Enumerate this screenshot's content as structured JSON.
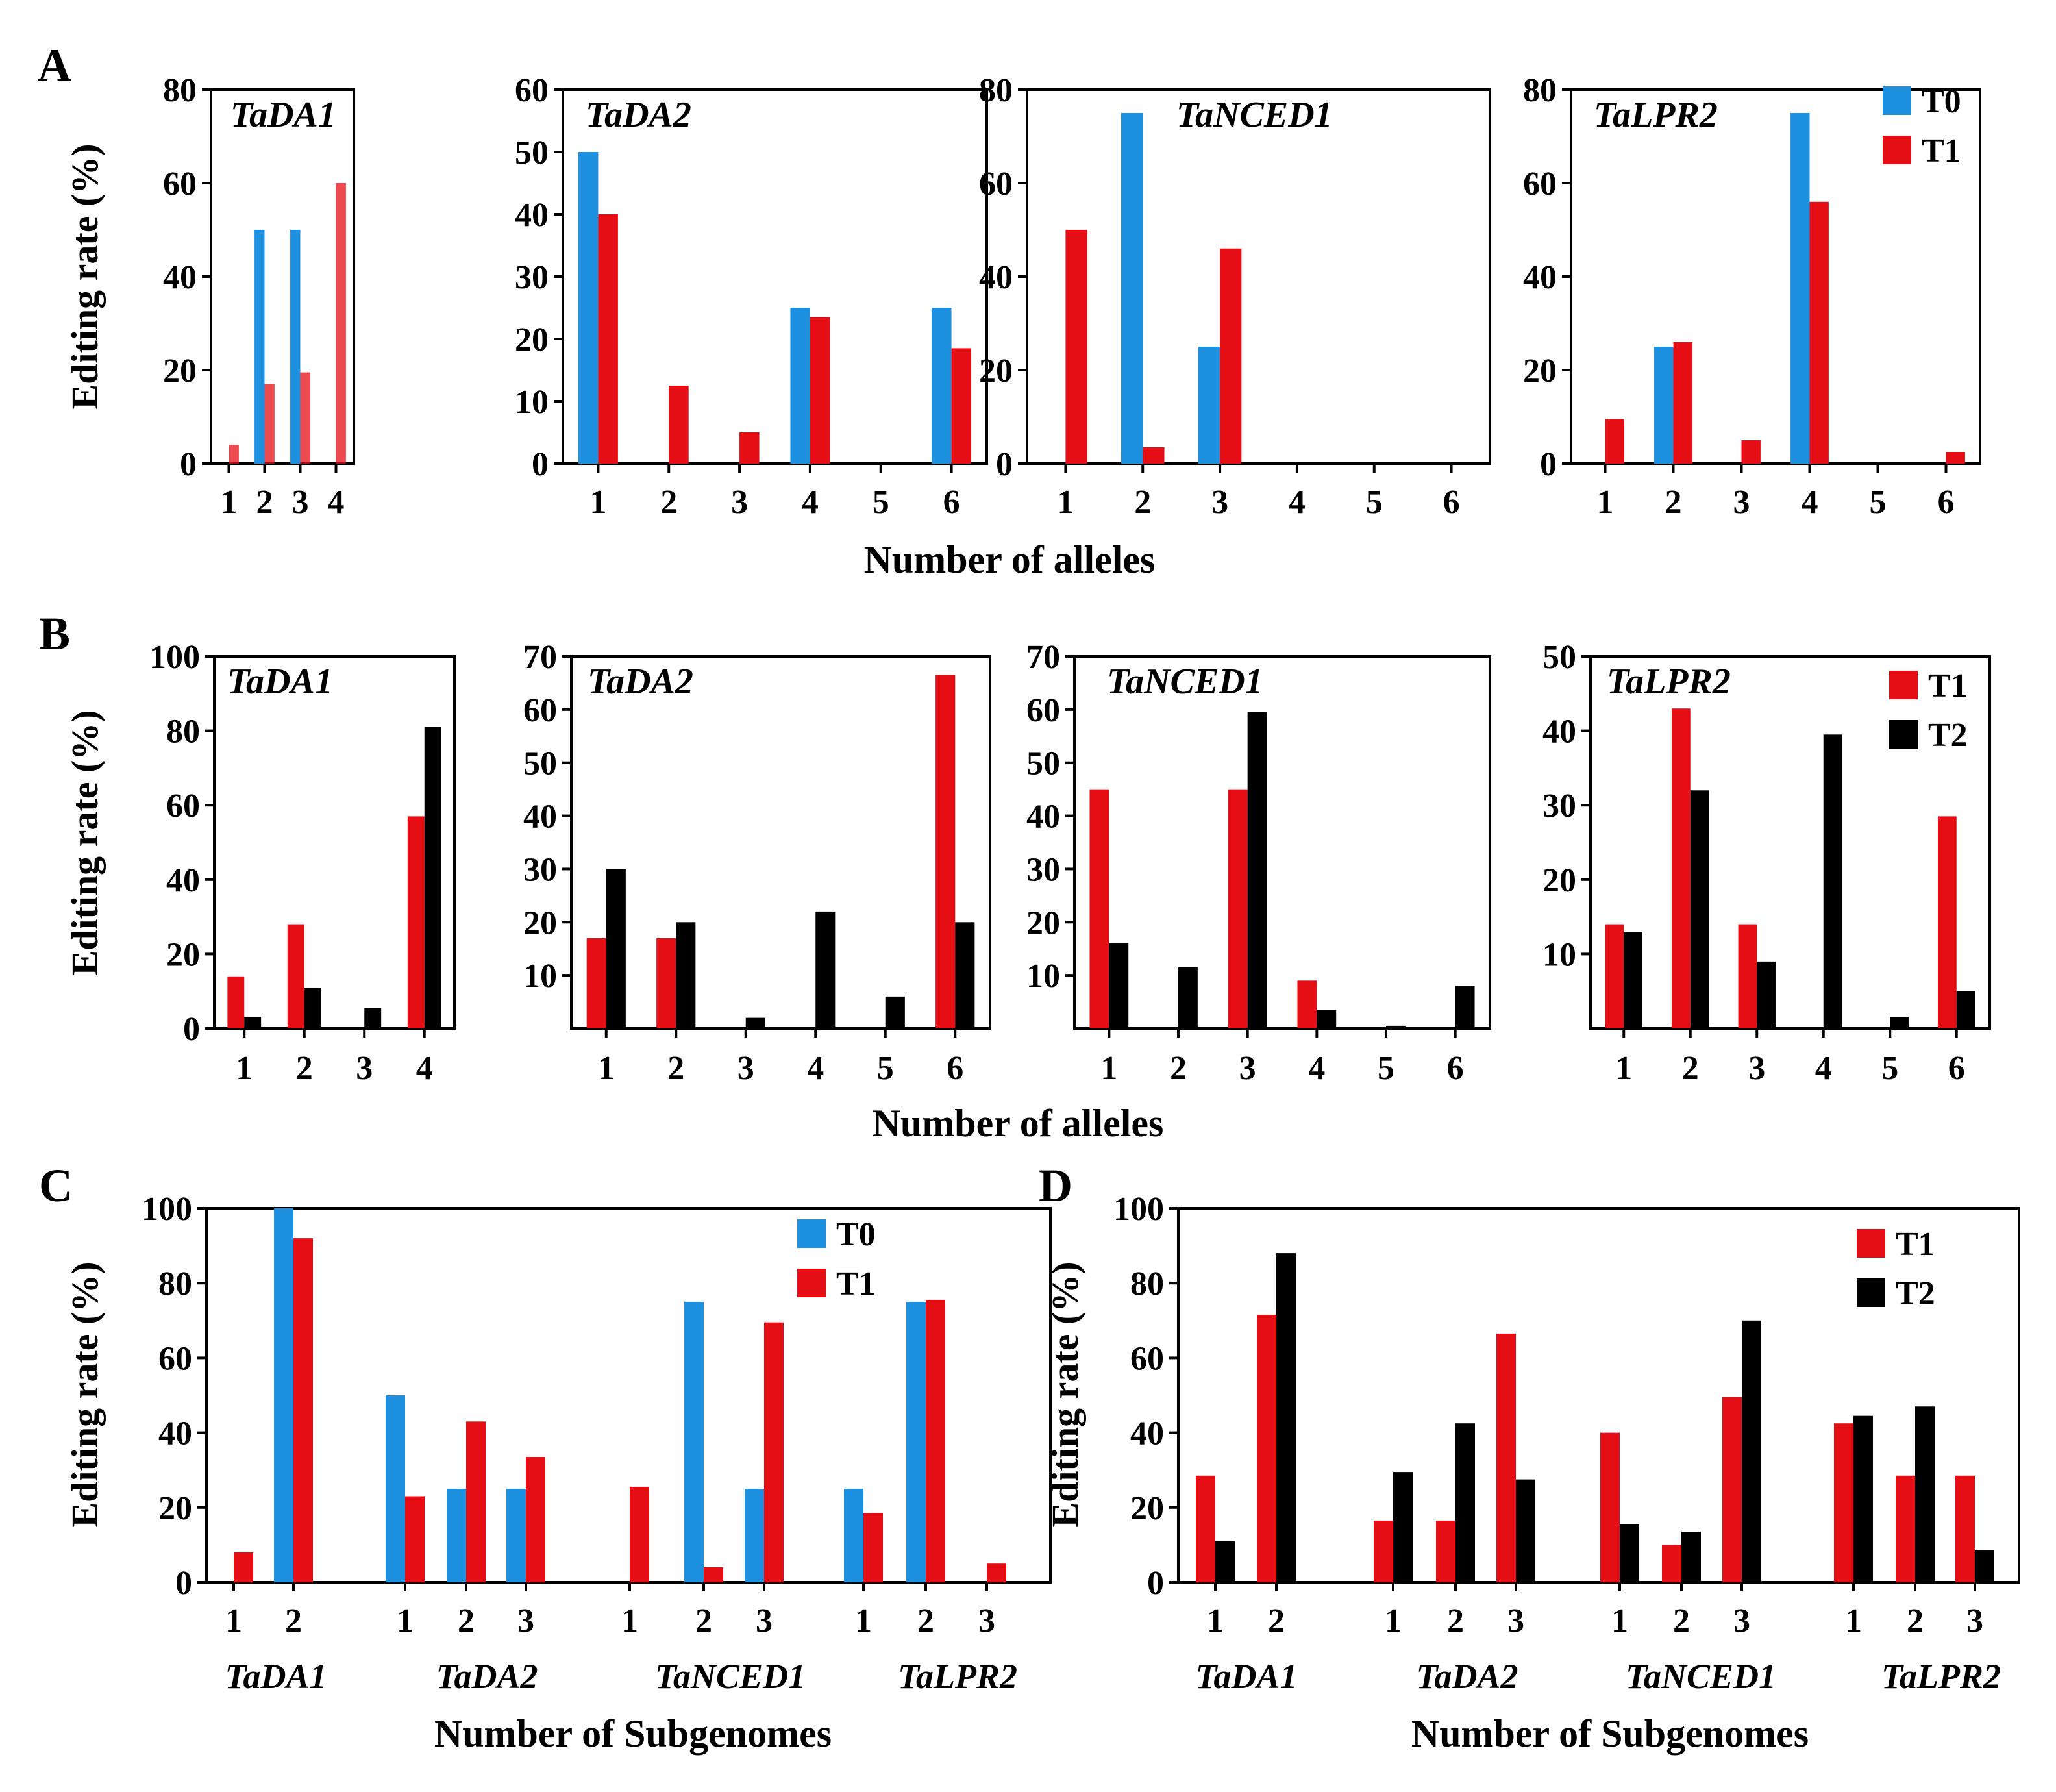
{
  "colors": {
    "T0": "#1e90e0",
    "T1": "#e50e14",
    "T2": "#000000"
  },
  "charts": [
    {
      "id": "A",
      "label": "A",
      "axis": {
        "ylabel": "Editing rate (%)",
        "xlabel": "Number of alleles"
      },
      "legend": [
        {
          "name": "T0",
          "color": "#1e90e0"
        },
        {
          "name": "T1",
          "color": "#e50e14"
        }
      ],
      "panels": [
        {
          "gene": "TaDA1",
          "ylim": [
            0,
            80
          ],
          "yticks": [
            "0",
            "20",
            "40",
            "60",
            "80"
          ],
          "categories": [
            "1",
            "2",
            "3",
            "4"
          ],
          "series": [
            {
              "name": "T0",
              "values": [
                0,
                50,
                50,
                0
              ]
            },
            {
              "name": "T1",
              "values": [
                4,
                17,
                19.5,
                60
              ]
            }
          ]
        },
        {
          "gene": "TaDA2",
          "ylim": [
            0,
            60
          ],
          "yticks": [
            "0",
            "10",
            "20",
            "30",
            "40",
            "50",
            "60"
          ],
          "categories": [
            "1",
            "2",
            "3",
            "4",
            "5",
            "6"
          ],
          "series": [
            {
              "name": "T0",
              "values": [
                50,
                0,
                0,
                25,
                0,
                25
              ]
            },
            {
              "name": "T1",
              "values": [
                40,
                12.5,
                5,
                23.5,
                0,
                18.5
              ]
            }
          ]
        },
        {
          "gene": "TaNCED1",
          "ylim": [
            0,
            80
          ],
          "yticks": [
            "0",
            "20",
            "40",
            "60",
            "80"
          ],
          "categories": [
            "1",
            "2",
            "3",
            "4",
            "5",
            "6"
          ],
          "series": [
            {
              "name": "T0",
              "values": [
                0,
                75,
                25,
                0,
                0,
                0
              ]
            },
            {
              "name": "T1",
              "values": [
                50,
                3.5,
                46,
                0,
                0,
                0
              ]
            }
          ]
        },
        {
          "gene": "TaLPR2",
          "ylim": [
            0,
            80
          ],
          "yticks": [
            "0",
            "20",
            "40",
            "60",
            "80"
          ],
          "categories": [
            "1",
            "2",
            "3",
            "4",
            "5",
            "6"
          ],
          "series": [
            {
              "name": "T0",
              "values": [
                0,
                25,
                0,
                75,
                0,
                0
              ]
            },
            {
              "name": "T1",
              "values": [
                9.5,
                26,
                5,
                56,
                0,
                2.5
              ]
            }
          ]
        }
      ]
    },
    {
      "id": "B",
      "label": "B",
      "axis": {
        "ylabel": "Editing rate (%)",
        "xlabel": "Number of alleles"
      },
      "legend": [
        {
          "name": "T1",
          "color": "#e50e14"
        },
        {
          "name": "T2",
          "color": "#000000"
        }
      ],
      "panels": [
        {
          "gene": "TaDA1",
          "ylim": [
            0,
            100
          ],
          "yticks": [
            "0",
            "20",
            "40",
            "60",
            "80",
            "100"
          ],
          "categories": [
            "1",
            "2",
            "3",
            "4"
          ],
          "series": [
            {
              "name": "T1",
              "values": [
                14,
                28,
                0,
                57
              ]
            },
            {
              "name": "T2",
              "values": [
                3,
                11,
                5.5,
                81
              ]
            }
          ]
        },
        {
          "gene": "TaDA2",
          "ylim": [
            0,
            70
          ],
          "yticks": [
            "10",
            "20",
            "30",
            "40",
            "50",
            "60",
            "70"
          ],
          "categories": [
            "1",
            "2",
            "3",
            "4",
            "5",
            "6"
          ],
          "series": [
            {
              "name": "T1",
              "values": [
                17,
                17,
                0,
                0,
                0,
                66.5
              ]
            },
            {
              "name": "T2",
              "values": [
                30,
                20,
                2,
                22,
                6,
                20
              ]
            }
          ]
        },
        {
          "gene": "TaNCED1",
          "ylim": [
            0,
            70
          ],
          "yticks": [
            "10",
            "20",
            "30",
            "40",
            "50",
            "60",
            "70"
          ],
          "categories": [
            "1",
            "2",
            "3",
            "4",
            "5",
            "6"
          ],
          "series": [
            {
              "name": "T1",
              "values": [
                45,
                0,
                45,
                9,
                0,
                0
              ]
            },
            {
              "name": "T2",
              "values": [
                16,
                11.5,
                59.5,
                3.5,
                0.5,
                8
              ]
            }
          ]
        },
        {
          "gene": "TaLPR2",
          "ylim": [
            0,
            50
          ],
          "yticks": [
            "10",
            "20",
            "30",
            "40",
            "50"
          ],
          "categories": [
            "1",
            "2",
            "3",
            "4",
            "5",
            "6"
          ],
          "series": [
            {
              "name": "T1",
              "values": [
                14,
                43,
                14,
                0,
                0,
                28.5
              ]
            },
            {
              "name": "T2",
              "values": [
                13,
                32,
                9,
                39.5,
                1.5,
                5
              ]
            }
          ]
        }
      ]
    },
    {
      "id": "C",
      "label": "C",
      "axis": {
        "ylabel": "Editing rate (%)",
        "xlabel": "Number of Subgenomes"
      },
      "ylim": [
        0,
        100
      ],
      "yticks": [
        "0",
        "20",
        "40",
        "60",
        "80",
        "100"
      ],
      "legend": [
        {
          "name": "T0",
          "color": "#1e90e0"
        },
        {
          "name": "T1",
          "color": "#e50e14"
        }
      ],
      "groups": [
        {
          "gene": "TaDA1",
          "categories": [
            "1",
            "2"
          ],
          "series": [
            {
              "name": "T0",
              "values": [
                0,
                100
              ]
            },
            {
              "name": "T1",
              "values": [
                8,
                92
              ]
            }
          ]
        },
        {
          "gene": "TaDA2",
          "categories": [
            "1",
            "2",
            "3"
          ],
          "series": [
            {
              "name": "T0",
              "values": [
                50,
                25,
                25
              ]
            },
            {
              "name": "T1",
              "values": [
                23,
                43,
                33.5
              ]
            }
          ]
        },
        {
          "gene": "TaNCED1",
          "categories": [
            "1",
            "2",
            "3"
          ],
          "series": [
            {
              "name": "T0",
              "values": [
                0,
                75,
                25
              ]
            },
            {
              "name": "T1",
              "values": [
                25.5,
                4,
                69.5
              ]
            }
          ]
        },
        {
          "gene": "TaLPR2",
          "categories": [
            "1",
            "2",
            "3"
          ],
          "series": [
            {
              "name": "T0",
              "values": [
                25,
                75,
                0
              ]
            },
            {
              "name": "T1",
              "values": [
                18.5,
                75.5,
                5
              ]
            }
          ]
        }
      ]
    },
    {
      "id": "D",
      "label": "D",
      "axis": {
        "ylabel": "Editing rate (%)",
        "xlabel": "Number of Subgenomes"
      },
      "ylim": [
        0,
        100
      ],
      "yticks": [
        "0",
        "20",
        "40",
        "60",
        "80",
        "100"
      ],
      "legend": [
        {
          "name": "T1",
          "color": "#e50e14"
        },
        {
          "name": "T2",
          "color": "#000000"
        }
      ],
      "groups": [
        {
          "gene": "TaDA1",
          "categories": [
            "1",
            "2"
          ],
          "series": [
            {
              "name": "T1",
              "values": [
                28.5,
                71.5
              ]
            },
            {
              "name": "T2",
              "values": [
                11,
                88
              ]
            }
          ]
        },
        {
          "gene": "TaDA2",
          "categories": [
            "1",
            "2",
            "3"
          ],
          "series": [
            {
              "name": "T1",
              "values": [
                16.5,
                16.5,
                66.5
              ]
            },
            {
              "name": "T2",
              "values": [
                29.5,
                42.5,
                27.5
              ]
            }
          ]
        },
        {
          "gene": "TaNCED1",
          "categories": [
            "1",
            "2",
            "3"
          ],
          "series": [
            {
              "name": "T1",
              "values": [
                40,
                10,
                49.5
              ]
            },
            {
              "name": "T2",
              "values": [
                15.5,
                13.5,
                70
              ]
            }
          ]
        },
        {
          "gene": "TaLPR2",
          "categories": [
            "1",
            "2",
            "3"
          ],
          "series": [
            {
              "name": "T1",
              "values": [
                42.5,
                28.5,
                28.5
              ]
            },
            {
              "name": "T2",
              "values": [
                44.5,
                47,
                8.5
              ]
            }
          ]
        }
      ]
    }
  ]
}
